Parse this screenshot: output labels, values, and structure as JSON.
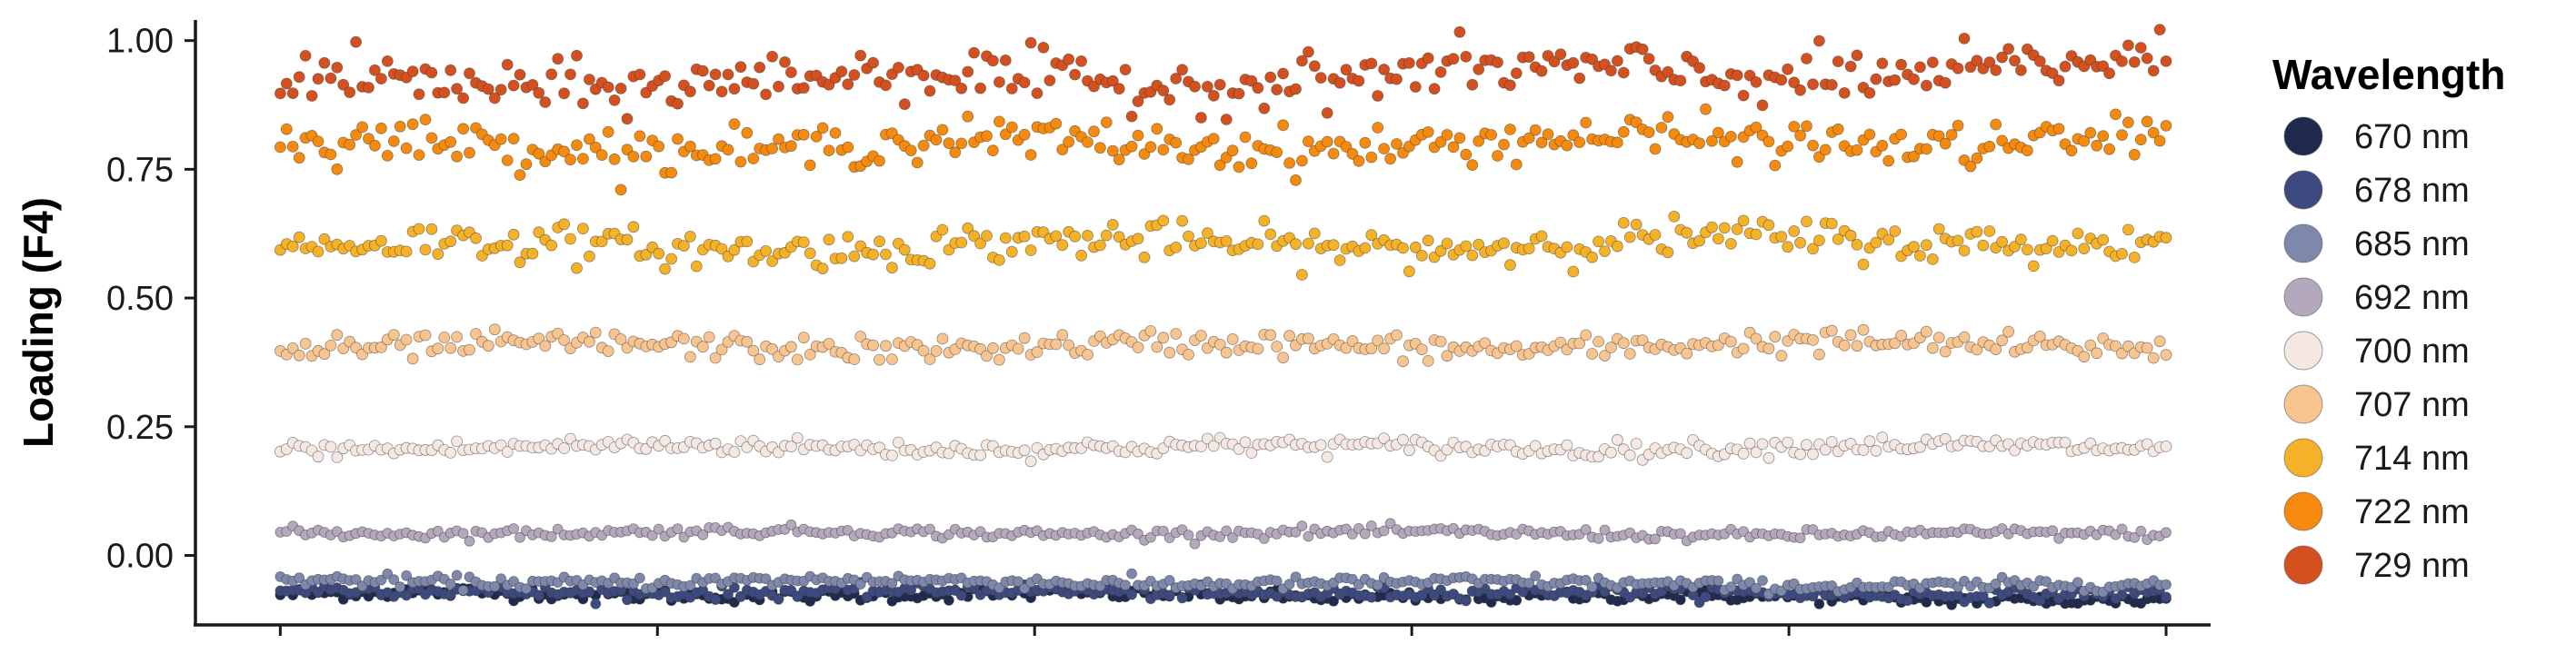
{
  "chart_data": {
    "type": "scatter",
    "ylabel": "Loading (F4)",
    "ylim": [
      -0.135,
      1.04
    ],
    "yticks": [
      {
        "value": 0.0,
        "label": "0.00"
      },
      {
        "value": 0.25,
        "label": "0.25"
      },
      {
        "value": 0.5,
        "label": "0.50"
      },
      {
        "value": 0.75,
        "label": "0.75"
      },
      {
        "value": 1.0,
        "label": "1.00"
      }
    ],
    "xlim": [
      -0.045,
      1.0236
    ],
    "xticks": [
      0.0,
      0.2,
      0.4,
      0.6,
      0.8,
      1.0
    ],
    "x_tick_labels_shown": false,
    "grid": false,
    "legend": {
      "title": "Wavelength",
      "placement": "right"
    },
    "points_per_series": 300,
    "series": [
      {
        "name": "670 nm",
        "color": "#1f2a4e",
        "base": -0.075,
        "trend": -0.01,
        "jitter": 0.006,
        "size": 5.5
      },
      {
        "name": "678 nm",
        "color": "#3d4a80",
        "base": -0.07,
        "trend": -0.005,
        "jitter": 0.006,
        "size": 5.5
      },
      {
        "name": "685 nm",
        "color": "#7e88aa",
        "base": -0.05,
        "trend": -0.01,
        "jitter": 0.006,
        "size": 5.5
      },
      {
        "name": "692 nm",
        "color": "#b4a8bc",
        "base": 0.045,
        "trend": -0.005,
        "jitter": 0.005,
        "size": 5.5
      },
      {
        "name": "700 nm",
        "color": "#f5e8e2",
        "base": 0.21,
        "trend": 0.0,
        "jitter": 0.008,
        "size": 6.0
      },
      {
        "name": "707 nm",
        "color": "#f8c590",
        "base": 0.405,
        "trend": 0.005,
        "jitter": 0.012,
        "size": 6.0
      },
      {
        "name": "714 nm",
        "color": "#f5b128",
        "base": 0.6,
        "trend": 0.015,
        "jitter": 0.018,
        "size": 6.0
      },
      {
        "name": "722 nm",
        "color": "#f58a0d",
        "base": 0.795,
        "trend": 0.015,
        "jitter": 0.02,
        "size": 6.0
      },
      {
        "name": "729 nm",
        "color": "#d4501f",
        "base": 0.92,
        "trend": 0.03,
        "jitter": 0.025,
        "size": 6.0
      }
    ]
  }
}
